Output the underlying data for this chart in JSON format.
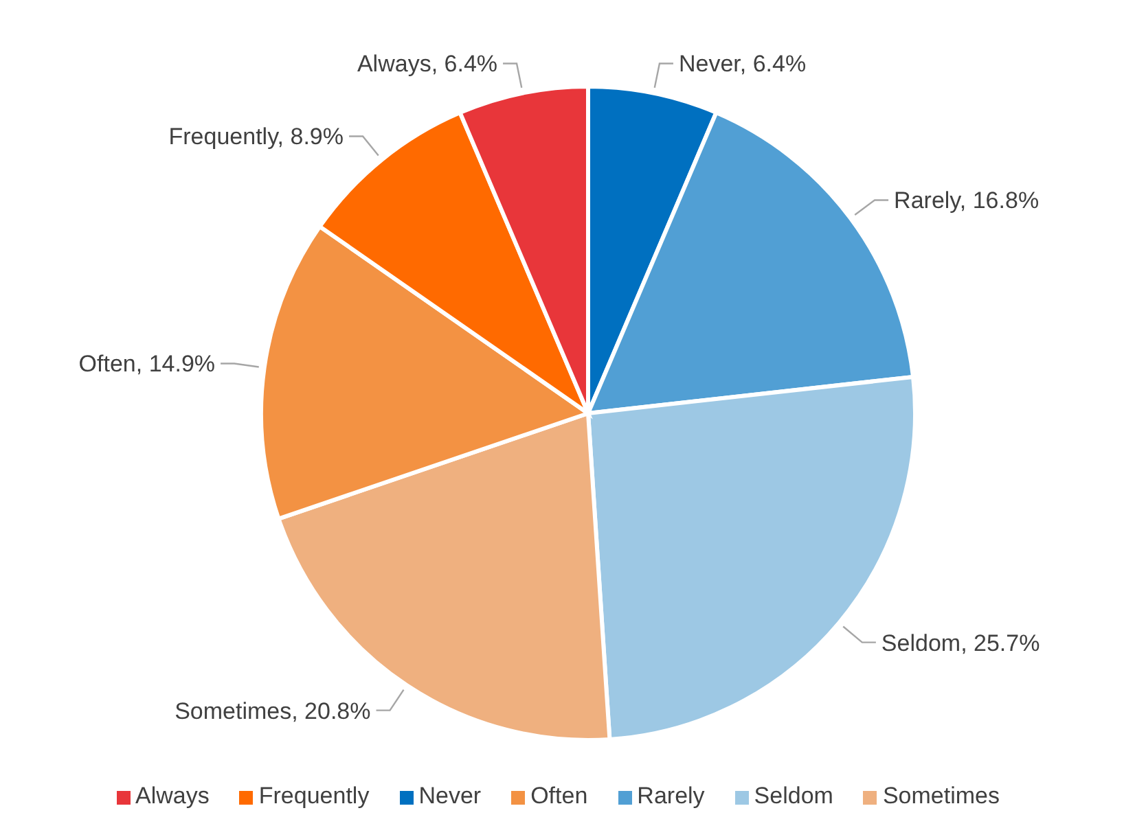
{
  "chart_data": {
    "type": "pie",
    "categories": [
      "Never",
      "Rarely",
      "Seldom",
      "Sometimes",
      "Often",
      "Frequently",
      "Always"
    ],
    "values": [
      6.4,
      16.8,
      25.7,
      20.8,
      14.9,
      8.9,
      6.4
    ],
    "value_labels": [
      "Never, 6.4%",
      "Rarely, 16.8%",
      "Seldom, 25.7%",
      "Sometimes, 20.8%",
      "Often, 14.9%",
      "Frequently, 8.9%",
      "Always, 6.4%"
    ],
    "colors": [
      "#0070c0",
      "#519fd4",
      "#9dc8e4",
      "#efb07f",
      "#f39243",
      "#ff6a00",
      "#e8363a"
    ],
    "legend": "bottom"
  }
}
